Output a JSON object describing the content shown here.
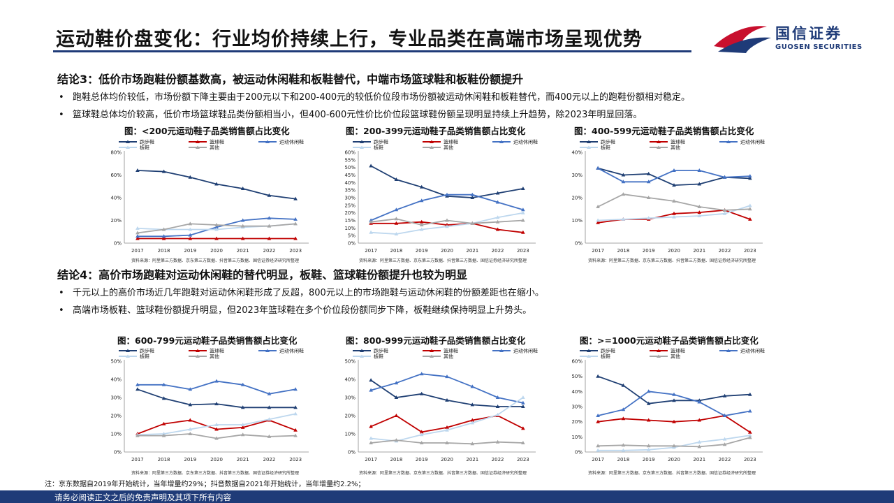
{
  "header": {
    "title": "运动鞋价盘变化：行业均价持续上行，专业品类在高端市场呈现优势",
    "logo_cn": "国信证券",
    "logo_en": "GUOSEN SECURITIES"
  },
  "section3": {
    "heading": "结论3：低价市场跑鞋份额基数高，被运动休闲鞋和板鞋替代，中端市场篮球鞋和板鞋份额提升",
    "bullets": [
      "跑鞋总体均价较低，市场份额下降主要由于200元以下和200-400元的较低价位段市场份额被运动休闲鞋和板鞋替代，而400元以上的跑鞋份额相对稳定。",
      "篮球鞋总体均价较高，低价市场篮球鞋品类份额相当小，但400-600元性价比价位段篮球鞋份额呈现明显持续上升趋势，除2023年明显回落。"
    ]
  },
  "section4": {
    "heading": "结论4：高价市场跑鞋对运动休闲鞋的替代明显，板鞋、篮球鞋份额提升也较为明显",
    "bullets": [
      "千元以上的高价市场近几年跑鞋对运动休闲鞋形成了反超，800元以上的市场跑鞋与运动休闲鞋的份额差距也在缩小。",
      "高端市场板鞋、篮球鞋份额提升明显，但2023年篮球鞋在多个价位段份额同步下降，板鞋继续保持明显上升势头。"
    ]
  },
  "bullet_marker": "•",
  "source_text": "资料来源：阿里第三方数据、京东第三方数据、抖音第三方数据、国信证券经济研究所整理",
  "note": "注：京东数据自2019年开始统计，当年增量约29%；抖音数据自2021年开始统计，当年增量约2.2%；",
  "footer": "请务必阅读正文之后的免责声明及其项下所有内容",
  "colors": {
    "跑步鞋": "#1f3f73",
    "篮球鞋": "#c00000",
    "运动休闲鞋": "#4472c4",
    "板鞋": "#bdd7ee",
    "其他": "#a6a6a6",
    "brand": "#1f3b78"
  },
  "chart_data": [
    {
      "type": "line",
      "title": "图：<200元运动鞋子品类销售额占比变化",
      "categories": [
        "2017",
        "2018",
        "2019",
        "2020",
        "2021",
        "2022",
        "2023"
      ],
      "ylim": [
        0,
        80
      ],
      "yticks": [
        "0%",
        "20%",
        "40%",
        "60%",
        "80%"
      ],
      "legend": "top",
      "series": [
        {
          "name": "跑步鞋",
          "values": [
            64,
            63,
            58,
            52,
            48,
            42,
            39
          ]
        },
        {
          "name": "篮球鞋",
          "values": [
            4,
            4,
            4,
            4,
            4,
            4,
            4
          ]
        },
        {
          "name": "运动休闲鞋",
          "values": [
            6,
            6,
            7,
            14,
            20,
            22,
            21
          ]
        },
        {
          "name": "板鞋",
          "values": [
            13,
            12,
            12,
            12,
            14,
            15,
            17
          ]
        },
        {
          "name": "其他",
          "values": [
            9,
            12,
            17,
            16,
            15,
            15,
            17
          ]
        }
      ]
    },
    {
      "type": "line",
      "title": "图：200-399元运动鞋子品类销售额占比变化",
      "categories": [
        "2017",
        "2018",
        "2019",
        "2020",
        "2021",
        "2022",
        "2023"
      ],
      "ylim": [
        0,
        60
      ],
      "yticks": [
        "0%",
        "5%",
        "10%",
        "15%",
        "20%",
        "25%",
        "30%",
        "35%",
        "40%",
        "45%",
        "50%",
        "55%",
        "60%"
      ],
      "legend": "top",
      "series": [
        {
          "name": "跑步鞋",
          "values": [
            51,
            42,
            37,
            31,
            30,
            33,
            36
          ]
        },
        {
          "name": "篮球鞋",
          "values": [
            13,
            13,
            14,
            12,
            13,
            9,
            7
          ]
        },
        {
          "name": "运动休闲鞋",
          "values": [
            15,
            22,
            28,
            32,
            32,
            27,
            22
          ]
        },
        {
          "name": "板鞋",
          "values": [
            7,
            6,
            9,
            11,
            13,
            17,
            20
          ]
        },
        {
          "name": "其他",
          "values": [
            14,
            16,
            12,
            15,
            13,
            14,
            15
          ]
        }
      ]
    },
    {
      "type": "line",
      "title": "图：400-599元运动鞋子品类销售额占比变化",
      "categories": [
        "2017",
        "2018",
        "2019",
        "2020",
        "2021",
        "2022",
        "2023"
      ],
      "ylim": [
        0,
        40
      ],
      "yticks": [
        "0%",
        "10%",
        "20%",
        "30%",
        "40%"
      ],
      "legend": "top",
      "series": [
        {
          "name": "跑步鞋",
          "values": [
            33,
            30,
            30.5,
            25.5,
            26,
            29,
            28.5
          ]
        },
        {
          "name": "篮球鞋",
          "values": [
            9,
            10.5,
            10.5,
            13,
            13.5,
            14.5,
            10.5
          ]
        },
        {
          "name": "运动休闲鞋",
          "values": [
            33,
            27,
            27,
            32,
            32,
            29,
            29.5
          ]
        },
        {
          "name": "板鞋",
          "values": [
            10,
            10.5,
            11,
            11.5,
            12,
            13,
            16.5
          ]
        },
        {
          "name": "其他",
          "values": [
            16,
            21.5,
            20,
            18.5,
            16,
            14.5,
            15
          ]
        }
      ]
    },
    {
      "type": "line",
      "title": "图：600-799元运动鞋子品类销售额占比变化",
      "categories": [
        "2017",
        "2018",
        "2019",
        "2020",
        "2021",
        "2022",
        "2023"
      ],
      "ylim": [
        0,
        50
      ],
      "yticks": [
        "0%",
        "10%",
        "20%",
        "30%",
        "40%",
        "50%"
      ],
      "legend": "top",
      "series": [
        {
          "name": "跑步鞋",
          "values": [
            34.5,
            29.5,
            26,
            26.5,
            24.5,
            24.5,
            24.5
          ]
        },
        {
          "name": "篮球鞋",
          "values": [
            10,
            15.5,
            17.5,
            12.5,
            13.5,
            17.5,
            12
          ]
        },
        {
          "name": "运动休闲鞋",
          "values": [
            37,
            37,
            34.5,
            39,
            37,
            32,
            34.5
          ]
        },
        {
          "name": "板鞋",
          "values": [
            9.5,
            10,
            12.5,
            15,
            15,
            18,
            21
          ]
        },
        {
          "name": "其他",
          "values": [
            9,
            9,
            10,
            7.5,
            9.5,
            8.5,
            9
          ]
        }
      ]
    },
    {
      "type": "line",
      "title": "图：800-999元运动鞋子品类销售额占比变化",
      "categories": [
        "2017",
        "2018",
        "2019",
        "2020",
        "2021",
        "2022",
        "2023"
      ],
      "ylim": [
        0,
        50
      ],
      "yticks": [
        "0%",
        "10%",
        "20%",
        "30%",
        "40%",
        "50%"
      ],
      "legend": "top",
      "series": [
        {
          "name": "跑步鞋",
          "values": [
            39.5,
            30,
            32,
            28.5,
            26,
            25,
            25
          ]
        },
        {
          "name": "篮球鞋",
          "values": [
            14,
            20,
            11,
            13.5,
            17.5,
            20,
            13
          ]
        },
        {
          "name": "运动休闲鞋",
          "values": [
            34,
            38,
            43,
            41.5,
            36,
            30,
            27
          ]
        },
        {
          "name": "板鞋",
          "values": [
            7.5,
            6,
            9.5,
            12,
            16,
            20.5,
            30
          ]
        },
        {
          "name": "其他",
          "values": [
            5,
            6.5,
            5,
            5,
            4.5,
            5.5,
            5
          ]
        }
      ]
    },
    {
      "type": "line",
      "title": "图：>=1000元运动鞋子品类销售额占比变化",
      "categories": [
        "2017",
        "2018",
        "2019",
        "2020",
        "2021",
        "2022",
        "2023"
      ],
      "ylim": [
        0,
        60
      ],
      "yticks": [
        "0%",
        "10%",
        "20%",
        "30%",
        "40%",
        "50%",
        "60%"
      ],
      "legend": "top",
      "series": [
        {
          "name": "跑步鞋",
          "values": [
            50,
            44,
            32,
            34,
            34,
            37,
            38
          ]
        },
        {
          "name": "篮球鞋",
          "values": [
            20,
            22,
            21,
            20,
            21,
            24,
            13
          ]
        },
        {
          "name": "运动休闲鞋",
          "values": [
            24,
            28,
            40,
            38,
            33,
            24,
            27
          ]
        },
        {
          "name": "板鞋",
          "values": [
            1,
            1,
            1.5,
            3,
            6.5,
            8.5,
            11
          ]
        },
        {
          "name": "其他",
          "values": [
            4,
            4.5,
            4,
            4,
            3.5,
            5,
            9.5
          ]
        }
      ]
    }
  ]
}
